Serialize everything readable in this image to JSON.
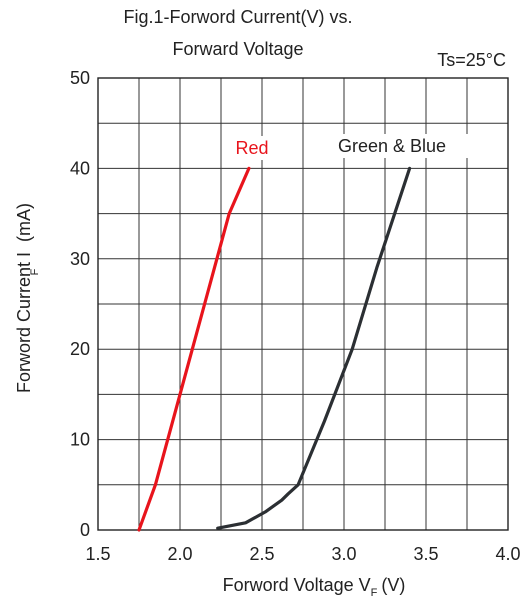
{
  "chart_data": {
    "type": "line",
    "title": "Fig.1-Forword Current(V) vs.",
    "subtitle": "Forward Voltage",
    "condition": "Ts=25°C",
    "xlabel": "Forword Voltage V",
    "xlabel_sub": "F",
    "xlabel_suffix": "(V)",
    "ylabel": "Forword Current I  (mA)",
    "ylabel_sub": "F",
    "xlim": [
      1.5,
      4.0
    ],
    "ylim": [
      0,
      50
    ],
    "x_ticks": [
      "1.5",
      "2.0",
      "2.5",
      "3.0",
      "3.5",
      "4.0"
    ],
    "y_ticks": [
      "0",
      "10",
      "20",
      "30",
      "40",
      "50"
    ],
    "grid": true,
    "series": [
      {
        "name": "Red",
        "color": "#e8141c",
        "x": [
          1.75,
          1.85,
          2.0,
          2.15,
          2.3,
          2.42
        ],
        "y": [
          0,
          5,
          15,
          25,
          35,
          40
        ]
      },
      {
        "name": "Green & Blue",
        "color": "#2b2f33",
        "x": [
          2.23,
          2.4,
          2.52,
          2.62,
          2.66,
          2.72,
          2.88,
          3.05,
          3.2,
          3.4
        ],
        "y": [
          0.2,
          0.8,
          2,
          3.3,
          4,
          5,
          12,
          20,
          29,
          40
        ]
      }
    ]
  }
}
